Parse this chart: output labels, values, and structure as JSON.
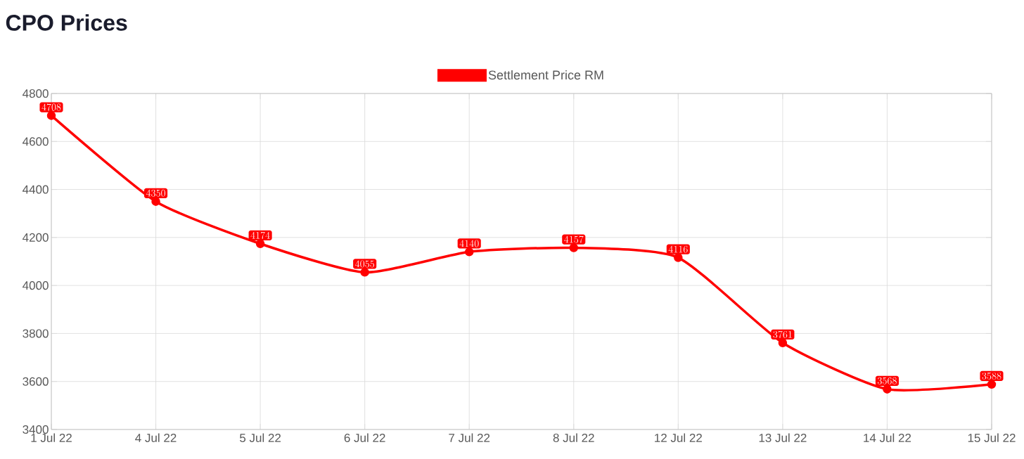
{
  "chart_data": {
    "type": "line",
    "title": "CPO Prices",
    "categories": [
      "1 Jul 22",
      "4 Jul 22",
      "5 Jul 22",
      "6 Jul 22",
      "7 Jul 22",
      "8 Jul 22",
      "12 Jul 22",
      "13 Jul 22",
      "14 Jul 22",
      "15 Jul 22"
    ],
    "series": [
      {
        "name": "Settlement Price RM",
        "color": "#ff0000",
        "values": [
          4708,
          4350,
          4174,
          4055,
          4140,
          4157,
          4116,
          3761,
          3568,
          3588
        ]
      }
    ],
    "ylim": [
      3400,
      4800
    ],
    "yticks": [
      3400,
      3600,
      3800,
      4000,
      4200,
      4400,
      4600,
      4800
    ],
    "grid": true,
    "legend": "top",
    "marker": "circle",
    "data_labels": true
  }
}
